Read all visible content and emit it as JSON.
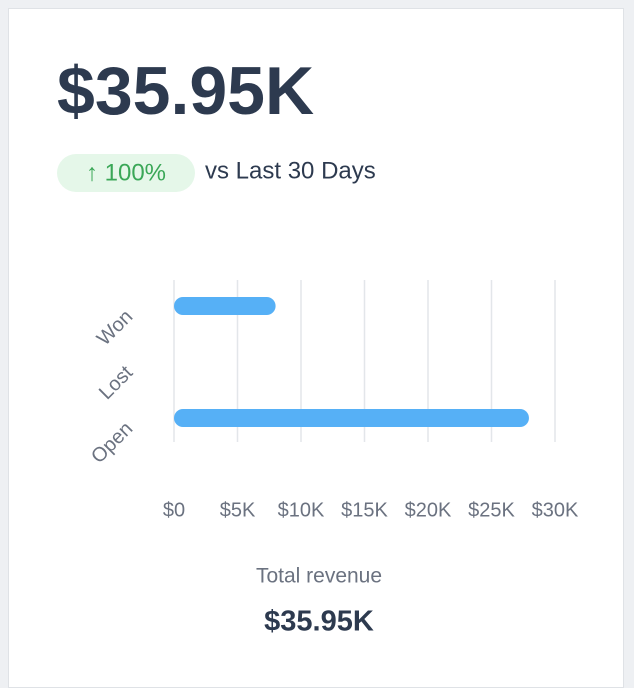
{
  "headline": "$35.95K",
  "change": {
    "text": "↑ 100%",
    "period": "vs Last 30 Days"
  },
  "footer": {
    "label": "Total revenue",
    "value": "$35.95K"
  },
  "chart_data": {
    "type": "hbar",
    "categories": [
      "Won",
      "Lost",
      "Open"
    ],
    "values": [
      8000,
      0,
      27950
    ],
    "color": "#56b0f6",
    "xlim": [
      0,
      30000
    ],
    "xticks": [
      {
        "value": 0,
        "label": "$0"
      },
      {
        "value": 5000,
        "label": "$5K"
      },
      {
        "value": 10000,
        "label": "$10K"
      },
      {
        "value": 15000,
        "label": "$15K"
      },
      {
        "value": 20000,
        "label": "$20K"
      },
      {
        "value": 25000,
        "label": "$25K"
      },
      {
        "value": 30000,
        "label": "$30K"
      }
    ],
    "grid": true
  }
}
